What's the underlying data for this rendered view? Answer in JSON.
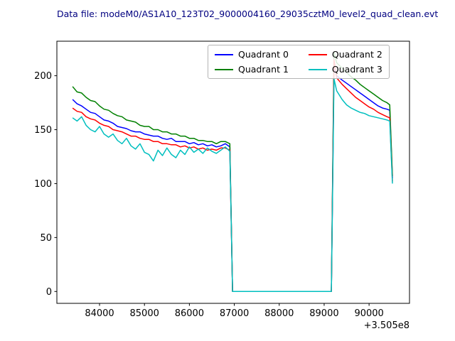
{
  "title": "Data file: modeM0/AS1A10_123T02_9000004160_29035cztM0_level2_quad_clean.evt",
  "title_color": "#000080",
  "chart_data": {
    "type": "line",
    "title": "Data file: modeM0/AS1A10_123T02_9000004160_29035cztM0_level2_quad_clean.evt",
    "xlabel": "",
    "ylabel": "",
    "x_offset_label": "+3.505e8",
    "xlim": [
      83050,
      90900
    ],
    "ylim": [
      -11,
      232
    ],
    "xticks": [
      84000,
      85000,
      86000,
      87000,
      88000,
      89000,
      90000
    ],
    "yticks": [
      0,
      50,
      100,
      150,
      200
    ],
    "grid": false,
    "legend_position": "upper center-right, 2 columns",
    "x": [
      83400,
      83500,
      83600,
      83700,
      83800,
      83900,
      84000,
      84100,
      84200,
      84300,
      84400,
      84500,
      84600,
      84700,
      84800,
      84900,
      85000,
      85100,
      85200,
      85300,
      85400,
      85500,
      85600,
      85700,
      85800,
      85900,
      86000,
      86100,
      86200,
      86300,
      86400,
      86500,
      86600,
      86700,
      86800,
      86900,
      86960,
      87100,
      88000,
      89000,
      89160,
      89220,
      89280,
      89400,
      89500,
      89600,
      89700,
      89800,
      89900,
      90000,
      90100,
      90200,
      90300,
      90400,
      90460,
      90520
    ],
    "series": [
      {
        "name": "Quadrant 0",
        "color": "#0000ff",
        "values": [
          178,
          174,
          172,
          169,
          166,
          165,
          162,
          159,
          158,
          156,
          153,
          152,
          151,
          149,
          148,
          148,
          146,
          145,
          144,
          144,
          142,
          141,
          142,
          139,
          139,
          139,
          137,
          138,
          136,
          137,
          135,
          136,
          134,
          135,
          137,
          134,
          0,
          0,
          0,
          0,
          0,
          207,
          200,
          196,
          193,
          190,
          187,
          184,
          181,
          178,
          175,
          172,
          170,
          169,
          168,
          105
        ]
      },
      {
        "name": "Quadrant 1",
        "color": "#008000",
        "values": [
          190,
          185,
          184,
          180,
          177,
          176,
          172,
          169,
          168,
          165,
          163,
          162,
          159,
          158,
          157,
          154,
          153,
          153,
          150,
          150,
          148,
          148,
          146,
          146,
          144,
          144,
          142,
          142,
          140,
          140,
          139,
          139,
          137,
          139,
          139,
          137,
          0,
          0,
          0,
          0,
          0,
          222,
          212,
          207,
          203,
          199,
          196,
          192,
          189,
          186,
          183,
          180,
          177,
          175,
          173,
          107
        ]
      },
      {
        "name": "Quadrant 2",
        "color": "#ff0000",
        "values": [
          170,
          167,
          166,
          162,
          160,
          159,
          156,
          154,
          153,
          150,
          149,
          148,
          146,
          144,
          144,
          142,
          141,
          141,
          139,
          139,
          137,
          137,
          136,
          136,
          134,
          135,
          133,
          134,
          132,
          133,
          131,
          132,
          131,
          133,
          133,
          131,
          0,
          0,
          0,
          0,
          0,
          215,
          198,
          192,
          188,
          184,
          180,
          177,
          174,
          171,
          169,
          166,
          164,
          162,
          161,
          102
        ]
      },
      {
        "name": "Quadrant 3",
        "color": "#00bfbf",
        "values": [
          161,
          158,
          162,
          154,
          150,
          148,
          153,
          146,
          143,
          146,
          140,
          137,
          142,
          135,
          132,
          137,
          129,
          127,
          121,
          131,
          126,
          133,
          127,
          124,
          131,
          127,
          134,
          129,
          132,
          128,
          133,
          130,
          128,
          131,
          134,
          130,
          0,
          0,
          0,
          0,
          0,
          197,
          186,
          178,
          173,
          170,
          168,
          166,
          165,
          163,
          162,
          161,
          160,
          159,
          158,
          100
        ]
      }
    ]
  }
}
